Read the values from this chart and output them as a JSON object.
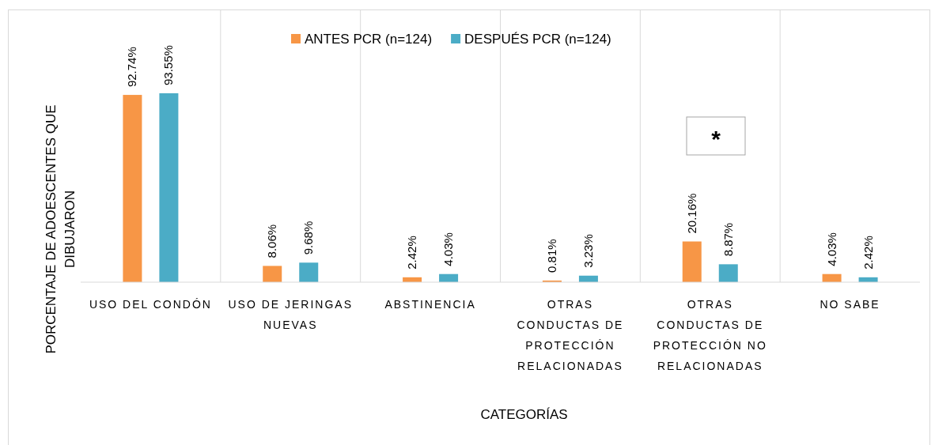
{
  "chart_data": {
    "type": "bar",
    "xlabel": "CATEGORÍAS",
    "ylabel": "PORCENTAJE DE ADOESCENTES QUE DIBUJARON",
    "categories": [
      "USO DEL CONDÓN",
      "USO DE JERINGAS NUEVAS",
      "ABSTINENCIA",
      "OTRAS CONDUCTAS DE PROTECCIÓN RELACIONADAS",
      "OTRAS CONDUCTAS DE PROTECCIÓN NO RELACIONADAS",
      "NO SABE"
    ],
    "series": [
      {
        "name": "ANTES PCR (n=124)",
        "color": "#f79646",
        "values": [
          92.74,
          8.06,
          2.42,
          0.81,
          20.16,
          4.03
        ],
        "value_labels": [
          "92.74%",
          "8.06%",
          "2.42%",
          "0.81%",
          "20.16%",
          "4.03%"
        ]
      },
      {
        "name": "DESPUÉS PCR (n=124)",
        "color": "#4bacc6",
        "values": [
          93.55,
          9.68,
          4.03,
          3.23,
          8.87,
          2.42
        ],
        "value_labels": [
          "93.55%",
          "9.68%",
          "4.03%",
          "3.23%",
          "8.87%",
          "2.42%"
        ]
      }
    ],
    "tick_labels": "x",
    "grid": "x",
    "legend": "top",
    "annotations": [
      "*"
    ]
  }
}
